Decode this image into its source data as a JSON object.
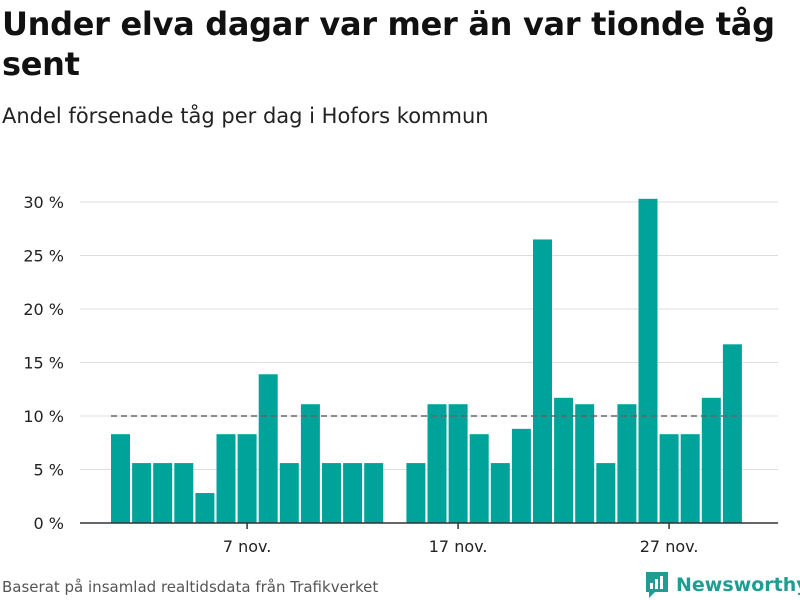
{
  "header": {
    "title": "Under elva dagar var mer än var tionde tåg sent",
    "subtitle": "Andel försenade tåg per dag i Hofors kommun"
  },
  "footer": {
    "source": "Baserat på insamlad realtidsdata från Trafikverket",
    "brand": "Newsworthy"
  },
  "colors": {
    "bar": "#00a39a",
    "reference_line": "#666666",
    "grid": "#dddddd",
    "brand": "#1f9d92"
  },
  "chart_data": {
    "type": "bar",
    "title": "Under elva dagar var mer än var tionde tåg sent",
    "subtitle": "Andel försenade tåg per dag i Hofors kommun",
    "x": [
      "2020-11-01",
      "2020-11-02",
      "2020-11-03",
      "2020-11-04",
      "2020-11-05",
      "2020-11-06",
      "2020-11-07",
      "2020-11-08",
      "2020-11-09",
      "2020-11-10",
      "2020-11-11",
      "2020-11-12",
      "2020-11-13",
      "2020-11-14",
      "2020-11-15",
      "2020-11-16",
      "2020-11-17",
      "2020-11-18",
      "2020-11-19",
      "2020-11-20",
      "2020-11-21",
      "2020-11-22",
      "2020-11-23",
      "2020-11-24",
      "2020-11-25",
      "2020-11-26",
      "2020-11-27",
      "2020-11-28",
      "2020-11-29",
      "2020-11-30"
    ],
    "values": [
      8.3,
      5.6,
      5.6,
      5.6,
      2.8,
      8.3,
      8.3,
      13.9,
      5.6,
      11.1,
      5.6,
      5.6,
      5.6,
      null,
      5.6,
      11.1,
      11.1,
      8.3,
      5.6,
      8.8,
      26.5,
      11.7,
      11.1,
      5.6,
      11.1,
      30.3,
      8.3,
      8.3,
      11.7,
      16.7
    ],
    "ylim": [
      0,
      30
    ],
    "yticks": [
      0,
      5,
      10,
      15,
      20,
      25,
      30
    ],
    "ytick_labels": [
      "0 %",
      "5 %",
      "10 %",
      "15 %",
      "20 %",
      "25 %",
      "30 %"
    ],
    "xticks": [
      {
        "x": "2020-11-07",
        "label": "7 nov."
      },
      {
        "x": "2020-11-17",
        "label": "17 nov."
      },
      {
        "x": "2020-11-27",
        "label": "27 nov."
      }
    ],
    "reference_line": {
      "y": 10,
      "style": "dashed"
    },
    "grid": true,
    "legend": false
  }
}
